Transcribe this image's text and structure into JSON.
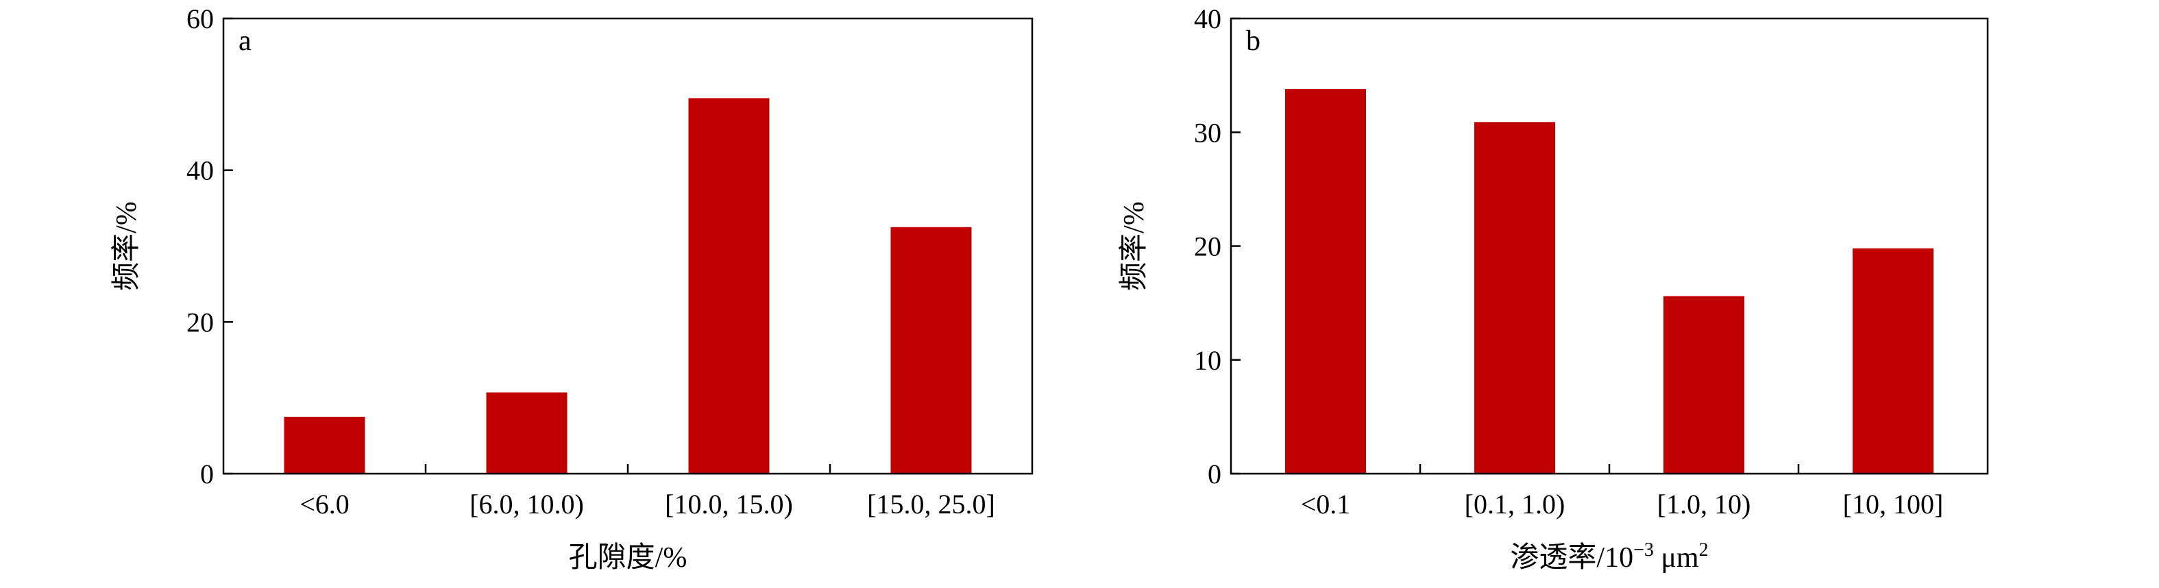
{
  "chart_data": [
    {
      "type": "bar",
      "panel_label": "a",
      "categories": [
        "<6.0",
        "[6.0, 10.0)",
        "[10.0, 15.0)",
        "[15.0, 25.0]"
      ],
      "values": [
        7.5,
        10.7,
        49.5,
        32.5
      ],
      "xlabel": "孔隙度/%",
      "ylabel": "频率/%",
      "ylim": [
        0,
        60
      ],
      "yticks": [
        "0",
        "20",
        "40",
        "60"
      ],
      "ytick_values": [
        0,
        20,
        40,
        60
      ],
      "bar_color": "#c00000",
      "grid": false,
      "legend": "none"
    },
    {
      "type": "bar",
      "panel_label": "b",
      "categories": [
        "<0.1",
        "[0.1, 1.0)",
        "[1.0, 10)",
        "[10, 100]"
      ],
      "values": [
        33.8,
        30.9,
        15.6,
        19.8
      ],
      "xlabel_main": "渗透率/10",
      "xlabel_sup": "−3",
      "xlabel_unit": " μm",
      "xlabel_unit_sup": "2",
      "ylabel": "频率/%",
      "ylim": [
        0,
        40
      ],
      "yticks": [
        "0",
        "10",
        "20",
        "30",
        "40"
      ],
      "ytick_values": [
        0,
        10,
        20,
        30,
        40
      ],
      "bar_color": "#c00000",
      "grid": false,
      "legend": "none"
    }
  ]
}
